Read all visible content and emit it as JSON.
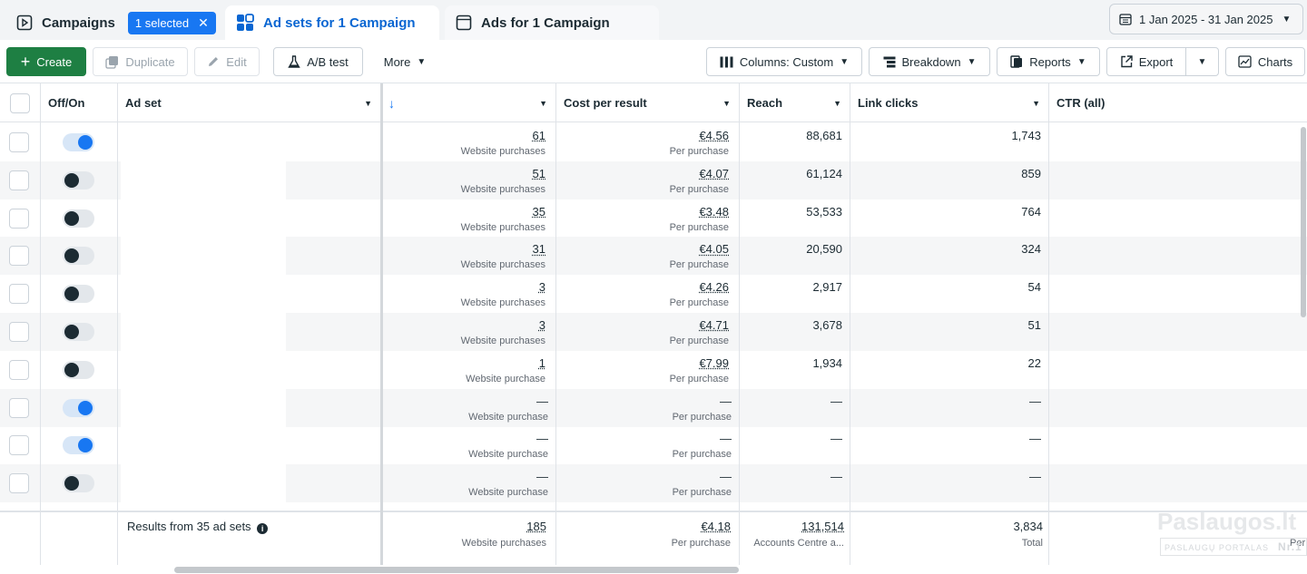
{
  "tabs": {
    "campaigns": "Campaigns",
    "selected_chip": "1 selected",
    "ad_sets": "Ad sets for 1 Campaign",
    "ads": "Ads for 1 Campaign"
  },
  "date_range": "1 Jan 2025 - 31 Jan 2025",
  "toolbar": {
    "create": "Create",
    "duplicate": "Duplicate",
    "edit": "Edit",
    "ab_test": "A/B test",
    "more": "More",
    "columns": "Columns: Custom",
    "breakdown": "Breakdown",
    "reports": "Reports",
    "export": "Export",
    "charts": "Charts"
  },
  "columns": {
    "off_on": "Off/On",
    "ad_set": "Ad set",
    "cost_per_result": "Cost per result",
    "reach": "Reach",
    "link_clicks": "Link clicks",
    "ctr": "CTR (all)"
  },
  "rows": [
    {
      "on": true,
      "results": "61",
      "results_label": "Website purchases",
      "cost": "€4.56",
      "cost_label": "Per purchase",
      "reach": "88,681",
      "clicks": "1,743"
    },
    {
      "on": false,
      "results": "51",
      "results_label": "Website purchases",
      "cost": "€4.07",
      "cost_label": "Per purchase",
      "reach": "61,124",
      "clicks": "859"
    },
    {
      "on": false,
      "results": "35",
      "results_label": "Website purchases",
      "cost": "€3.48",
      "cost_label": "Per purchase",
      "reach": "53,533",
      "clicks": "764"
    },
    {
      "on": false,
      "results": "31",
      "results_label": "Website purchases",
      "cost": "€4.05",
      "cost_label": "Per purchase",
      "reach": "20,590",
      "clicks": "324"
    },
    {
      "on": false,
      "results": "3",
      "results_label": "Website purchases",
      "cost": "€4.26",
      "cost_label": "Per purchase",
      "reach": "2,917",
      "clicks": "54"
    },
    {
      "on": false,
      "results": "3",
      "results_label": "Website purchases",
      "cost": "€4.71",
      "cost_label": "Per purchase",
      "reach": "3,678",
      "clicks": "51"
    },
    {
      "on": false,
      "results": "1",
      "results_label": "Website purchase",
      "cost": "€7.99",
      "cost_label": "Per purchase",
      "reach": "1,934",
      "clicks": "22"
    },
    {
      "on": true,
      "results": "—",
      "results_label": "Website purchase",
      "cost": "—",
      "cost_label": "Per purchase",
      "reach": "—",
      "clicks": "—"
    },
    {
      "on": true,
      "results": "—",
      "results_label": "Website purchase",
      "cost": "—",
      "cost_label": "Per purchase",
      "reach": "—",
      "clicks": "—"
    },
    {
      "on": false,
      "results": "—",
      "results_label": "Website purchase",
      "cost": "—",
      "cost_label": "Per purchase",
      "reach": "—",
      "clicks": "—"
    }
  ],
  "footer": {
    "summary": "Results from 35 ad sets",
    "results": "185",
    "results_label": "Website purchases",
    "cost": "€4.18",
    "cost_label": "Per purchase",
    "reach": "131,514",
    "reach_label": "Accounts Centre a...",
    "clicks": "3,834",
    "clicks_label": "Total",
    "ctr_label": "Per"
  },
  "watermark": {
    "title": "Paslaugos.lt",
    "subtitle": "PASLAUGŲ PORTALAS",
    "badge": "Nr.1"
  },
  "colors": {
    "accent": "#1877f2",
    "create_green": "#1e7f43",
    "text": "#1c2b33",
    "row_alt": "#f5f6f7"
  }
}
